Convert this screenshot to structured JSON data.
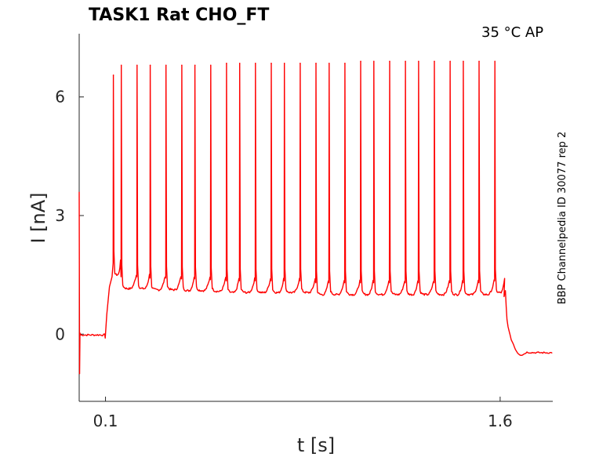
{
  "header": {
    "title": "TASK1  Rat  CHO_FT",
    "condition": "35 °C  AP"
  },
  "side_note": "BBP Channelpedia ID 30077 rep 2",
  "chart_data": {
    "type": "line",
    "xlabel": "t [s]",
    "ylabel": "I [nA]",
    "xlim": [
      0.0,
      1.8
    ],
    "ylim": [
      -1.7,
      7.6
    ],
    "xticks": [
      0.1,
      1.6
    ],
    "xtick_labels": [
      "0.1",
      "1.6"
    ],
    "yticks": [
      0,
      3,
      6
    ],
    "ytick_labels": [
      "0",
      "3",
      "6"
    ],
    "grid": false,
    "legend": "none",
    "series_color": "#ff0000",
    "stim_start": 0.1,
    "stim_end": 1.62,
    "baseline": -0.02,
    "end_level": -0.47,
    "spike_times": [
      0.13,
      0.16,
      0.22,
      0.27,
      0.33,
      0.39,
      0.44,
      0.5,
      0.56,
      0.61,
      0.67,
      0.73,
      0.78,
      0.84,
      0.9,
      0.95,
      1.01,
      1.07,
      1.12,
      1.18,
      1.24,
      1.29,
      1.35,
      1.41,
      1.46,
      1.52,
      1.58
    ],
    "spike_peaks": [
      6.55,
      6.8,
      6.8,
      6.8,
      6.8,
      6.8,
      6.8,
      6.8,
      6.85,
      6.85,
      6.85,
      6.85,
      6.85,
      6.85,
      6.85,
      6.85,
      6.85,
      6.9,
      6.9,
      6.9,
      6.9,
      6.9,
      6.9,
      6.9,
      6.9,
      6.9,
      6.9
    ],
    "trough_levels": [
      1.5,
      1.15,
      1.15,
      1.12,
      1.12,
      1.1,
      1.1,
      1.08,
      1.05,
      1.05,
      1.05,
      1.05,
      1.05,
      1.05,
      1.0,
      1.0,
      1.0,
      1.0,
      1.0,
      1.0,
      1.0,
      1.0,
      1.0,
      1.0,
      1.0,
      1.0,
      1.05
    ]
  }
}
